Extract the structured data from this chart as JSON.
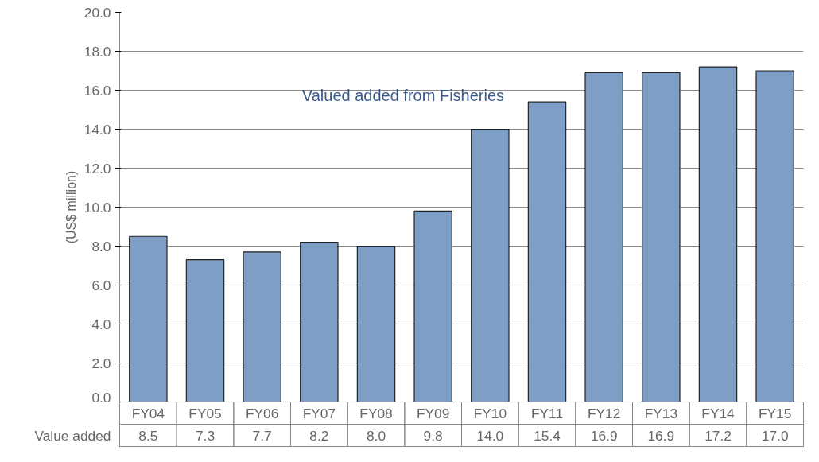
{
  "chart_data": {
    "type": "bar",
    "title": "Valued added from Fisheries",
    "ylabel": "(US$ million)",
    "categories": [
      "FY04",
      "FY05",
      "FY06",
      "FY07",
      "FY08",
      "FY09",
      "FY10",
      "FY11",
      "FY12",
      "FY13",
      "FY14",
      "FY15"
    ],
    "series": [
      {
        "name": "Value added",
        "color": "#7f9ec6",
        "values": [
          8.5,
          7.3,
          7.7,
          8.2,
          8.0,
          9.8,
          14.0,
          15.4,
          16.9,
          16.9,
          17.2,
          17.0
        ],
        "value_labels": [
          "8.5",
          "7.3",
          "7.7",
          "8.2",
          "8.0",
          "9.8",
          "14.0",
          "15.4",
          "16.9",
          "16.9",
          "17.2",
          "17.0"
        ]
      }
    ],
    "ylim": [
      0,
      20
    ],
    "yticks": [
      {
        "value": 0,
        "label": "0.0"
      },
      {
        "value": 2,
        "label": "2.0"
      },
      {
        "value": 4,
        "label": "4.0"
      },
      {
        "value": 6,
        "label": "6.0"
      },
      {
        "value": 8,
        "label": "8.0"
      },
      {
        "value": 10,
        "label": "10.0"
      },
      {
        "value": 12,
        "label": "12.0"
      },
      {
        "value": 14,
        "label": "14.0"
      },
      {
        "value": 16,
        "label": "16.0"
      },
      {
        "value": 18,
        "label": "18.0"
      },
      {
        "value": 20,
        "label": "20.0"
      }
    ],
    "grid": "y"
  }
}
